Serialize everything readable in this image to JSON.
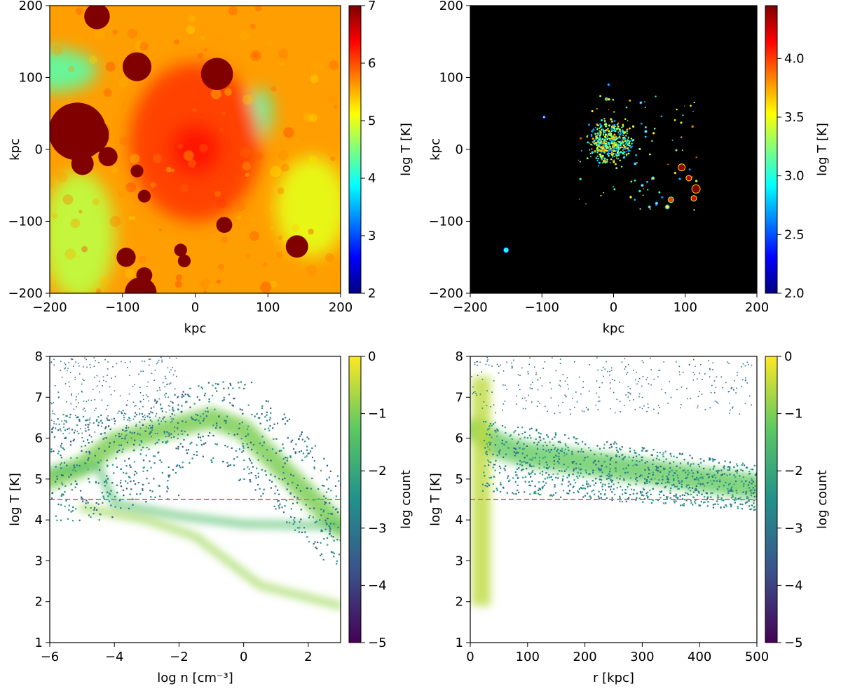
{
  "chart_data": [
    {
      "type": "heatmap",
      "panel": "top-left",
      "xlabel": "kpc",
      "ylabel": "kpc",
      "xlim": [
        -200,
        200
      ],
      "ylim": [
        -200,
        200
      ],
      "xticks": [
        -200,
        -100,
        0,
        100,
        200
      ],
      "yticks": [
        -200,
        -100,
        0,
        100,
        200
      ],
      "xtick_labels": [
        "−200",
        "−100",
        "0",
        "100",
        "200"
      ],
      "ytick_labels": [
        "−200",
        "−100",
        "0",
        "100",
        "200"
      ],
      "colorbar": {
        "label": "log T  [K]",
        "colormap": "jet",
        "range": [
          2,
          7
        ],
        "ticks": [
          2,
          3,
          4,
          5,
          6,
          7
        ],
        "tick_labels": [
          "2",
          "3",
          "4",
          "5",
          "6",
          "7"
        ]
      },
      "background_value": 5.6,
      "regions": [
        {
          "x": -195,
          "y": 110,
          "rx": 60,
          "ry": 30,
          "value": 4.3
        },
        {
          "x": -160,
          "y": -120,
          "rx": 50,
          "ry": 90,
          "value": 4.8
        },
        {
          "x": 160,
          "y": -80,
          "rx": 50,
          "ry": 70,
          "value": 5.0
        },
        {
          "x": 90,
          "y": 50,
          "rx": 15,
          "ry": 35,
          "value": 4.2
        },
        {
          "x": 0,
          "y": 10,
          "rx": 90,
          "ry": 110,
          "value": 6.1
        },
        {
          "x": 0,
          "y": 0,
          "rx": 35,
          "ry": 35,
          "value": 6.3
        }
      ],
      "clumps": [
        {
          "x": -162,
          "y": 25,
          "r": 18,
          "value": 7
        },
        {
          "x": -145,
          "y": 20,
          "r": 12,
          "value": 7
        },
        {
          "x": -135,
          "y": 185,
          "r": 8,
          "value": 7
        },
        {
          "x": -80,
          "y": 115,
          "r": 9,
          "value": 7
        },
        {
          "x": 30,
          "y": 105,
          "r": 10,
          "value": 7
        },
        {
          "x": -155,
          "y": -20,
          "r": 7,
          "value": 7
        },
        {
          "x": -120,
          "y": -10,
          "r": 6,
          "value": 7
        },
        {
          "x": 140,
          "y": -135,
          "r": 7,
          "value": 7
        },
        {
          "x": -95,
          "y": -150,
          "r": 6,
          "value": 7
        },
        {
          "x": -75,
          "y": -200,
          "r": 10,
          "value": 7
        },
        {
          "x": -70,
          "y": -175,
          "r": 5,
          "value": 7
        },
        {
          "x": 40,
          "y": -105,
          "r": 5,
          "value": 7
        },
        {
          "x": -15,
          "y": -155,
          "r": 4,
          "value": 7
        },
        {
          "x": -80,
          "y": -30,
          "r": 4,
          "value": 7
        },
        {
          "x": -70,
          "y": -65,
          "r": 4,
          "value": 7
        },
        {
          "x": -20,
          "y": -140,
          "r": 4,
          "value": 7
        }
      ]
    },
    {
      "type": "heatmap",
      "panel": "top-right",
      "xlabel": "kpc",
      "ylabel": "kpc",
      "xlim": [
        -200,
        200
      ],
      "ylim": [
        -200,
        200
      ],
      "xticks": [
        -200,
        -100,
        0,
        100,
        200
      ],
      "yticks": [
        -200,
        -100,
        0,
        100,
        200
      ],
      "xtick_labels": [
        "−200",
        "−100",
        "0",
        "100",
        "200"
      ],
      "ytick_labels": [
        "−200",
        "−100",
        "0",
        "100",
        "200"
      ],
      "colorbar": {
        "label": "log T  [K]",
        "colormap": "jet",
        "range": [
          2.0,
          4.45
        ],
        "ticks": [
          2.0,
          2.5,
          3.0,
          3.5,
          4.0
        ],
        "tick_labels": [
          "2.0",
          "2.5",
          "3.0",
          "3.5",
          "4.0"
        ]
      },
      "background": "black",
      "disk": {
        "x": -5,
        "y": 10,
        "r": 25,
        "value": 3.3
      },
      "clumps": [
        {
          "x": -150,
          "y": -140,
          "r": 4,
          "value": 3.0
        },
        {
          "x": -97,
          "y": 45,
          "r": 2,
          "value": 3.1
        },
        {
          "x": -7,
          "y": 90,
          "r": 2,
          "value": 2.8
        },
        {
          "x": 38,
          "y": 65,
          "r": 2,
          "value": 3.2
        },
        {
          "x": 45,
          "y": 25,
          "r": 2,
          "value": 3.3
        },
        {
          "x": 95,
          "y": -25,
          "r": 5,
          "value": 4.4
        },
        {
          "x": 105,
          "y": -40,
          "r": 4,
          "value": 4.3
        },
        {
          "x": 115,
          "y": -55,
          "r": 6,
          "value": 4.45
        },
        {
          "x": 112,
          "y": -68,
          "r": 4,
          "value": 4.2
        },
        {
          "x": 80,
          "y": -70,
          "r": 4,
          "value": 4.0
        },
        {
          "x": 75,
          "y": -80,
          "r": 3,
          "value": 3.5
        },
        {
          "x": 60,
          "y": -75,
          "r": 2,
          "value": 3.4
        },
        {
          "x": 40,
          "y": -50,
          "r": 2,
          "value": 3.3
        },
        {
          "x": -10,
          "y": 70,
          "r": 2,
          "value": 3.8
        },
        {
          "x": 30,
          "y": -20,
          "r": 2,
          "value": 3.2
        },
        {
          "x": 55,
          "y": -40,
          "r": 2,
          "value": 3.6
        },
        {
          "x": 50,
          "y": -80,
          "r": 2,
          "value": 3.3
        }
      ]
    },
    {
      "type": "heatmap",
      "panel": "bottom-left",
      "xlabel": "log n  [cm⁻³]",
      "ylabel": "log T  [K]",
      "xlim": [
        -6,
        3
      ],
      "ylim": [
        1,
        8
      ],
      "xticks": [
        -6,
        -4,
        -2,
        0,
        2
      ],
      "yticks": [
        1,
        2,
        3,
        4,
        5,
        6,
        7,
        8
      ],
      "xtick_labels": [
        "−6",
        "−4",
        "−2",
        "0",
        "2"
      ],
      "ytick_labels": [
        "1",
        "2",
        "3",
        "4",
        "5",
        "6",
        "7",
        "8"
      ],
      "colorbar": {
        "label": "log count",
        "colormap": "viridis",
        "range": [
          -5,
          0
        ],
        "ticks": [
          -5,
          -4,
          -3,
          -2,
          -1,
          0
        ],
        "tick_labels": [
          "−5",
          "−4",
          "−3",
          "−2",
          "−1",
          "0"
        ]
      },
      "reference_line": {
        "y": 4.5,
        "style": "dashed",
        "color": "#e8735a"
      },
      "ridges": [
        {
          "points": [
            [
              -6,
              5.0
            ],
            [
              -5,
              5.3
            ],
            [
              -4,
              5.9
            ],
            [
              -3,
              6.1
            ],
            [
              -2,
              6.3
            ],
            [
              -1,
              6.5
            ],
            [
              0,
              6.2
            ],
            [
              1,
              5.4
            ],
            [
              2,
              4.6
            ],
            [
              3,
              3.8
            ]
          ],
          "value": -1.0,
          "width": 0.5
        },
        {
          "points": [
            [
              -6,
              5.2
            ],
            [
              -4.5,
              5.3
            ],
            [
              -4,
              4.4
            ],
            [
              -2,
              4.1
            ],
            [
              0,
              3.9
            ],
            [
              3,
              3.85
            ]
          ],
          "value": -1.5,
          "width": 0.15
        },
        {
          "points": [
            [
              -5,
              4.3
            ],
            [
              -3,
              4.0
            ],
            [
              -1.5,
              3.6
            ],
            [
              -0.5,
              3.0
            ],
            [
              0.5,
              2.4
            ],
            [
              1.5,
              2.2
            ],
            [
              3,
              1.9
            ]
          ],
          "value": -0.8,
          "width": 0.15
        }
      ]
    },
    {
      "type": "heatmap",
      "panel": "bottom-right",
      "xlabel": "r  [kpc]",
      "ylabel": "log T  [K]",
      "xlim": [
        0,
        500
      ],
      "ylim": [
        1,
        8
      ],
      "xticks": [
        0,
        100,
        200,
        300,
        400,
        500
      ],
      "yticks": [
        1,
        2,
        3,
        4,
        5,
        6,
        7,
        8
      ],
      "xtick_labels": [
        "0",
        "100",
        "200",
        "300",
        "400",
        "500"
      ],
      "ytick_labels": [
        "1",
        "2",
        "3",
        "4",
        "5",
        "6",
        "7",
        "8"
      ],
      "colorbar": {
        "label": "log count",
        "colormap": "viridis",
        "range": [
          -5,
          0
        ],
        "ticks": [
          -5,
          -4,
          -3,
          -2,
          -1,
          0
        ],
        "tick_labels": [
          "−5",
          "−4",
          "−3",
          "−2",
          "−1",
          "0"
        ]
      },
      "reference_line": {
        "y": 4.5,
        "style": "dashed",
        "color": "#e8735a"
      },
      "band": {
        "points": [
          [
            10,
            6.2
          ],
          [
            50,
            5.8
          ],
          [
            100,
            5.6
          ],
          [
            200,
            5.4
          ],
          [
            300,
            5.2
          ],
          [
            400,
            5.0
          ],
          [
            500,
            4.8
          ]
        ],
        "value": -1.2,
        "width": 0.6
      },
      "inner_spike": {
        "x": 15,
        "y_low": 1.9,
        "y_high": 7.5,
        "value": -0.5
      }
    }
  ]
}
